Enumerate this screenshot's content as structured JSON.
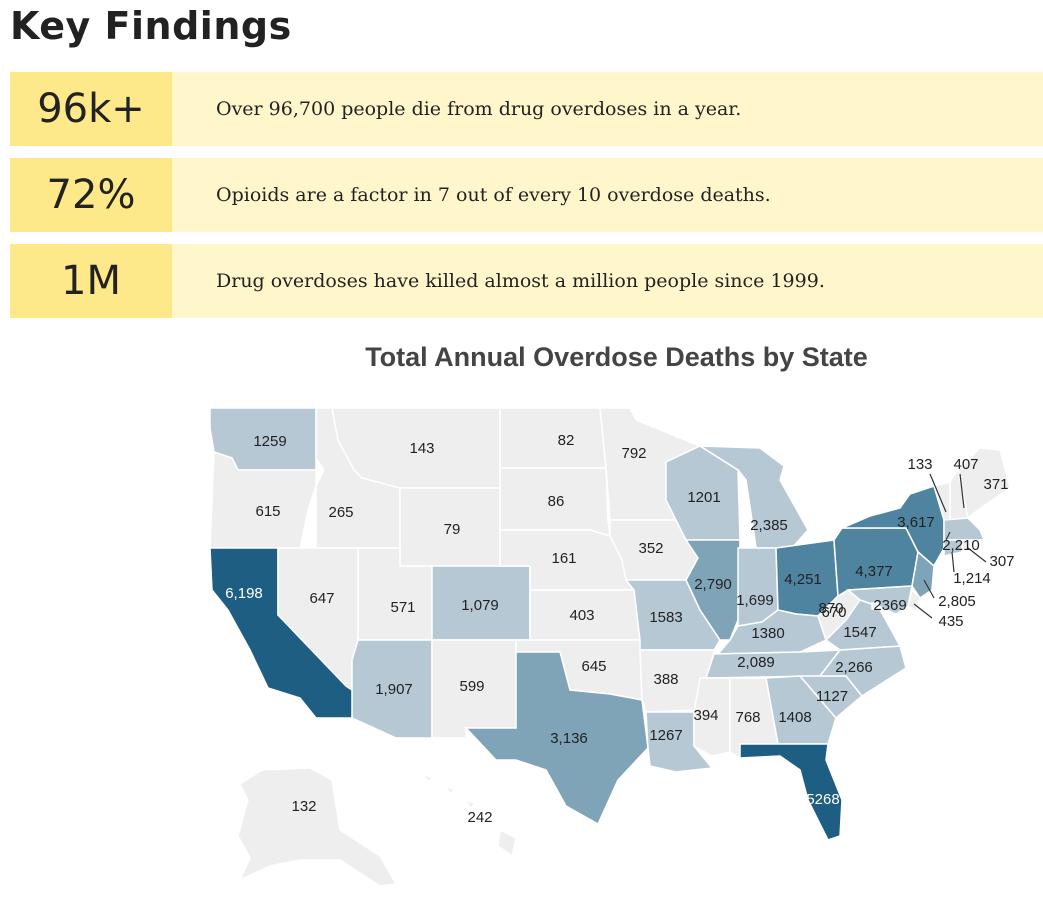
{
  "heading": "Key Findings",
  "findings": [
    {
      "stat": "96k+",
      "text": "Over 96,700 people die from drug overdoses in a year."
    },
    {
      "stat": "72%",
      "text": "Opioids are a factor in 7 out of every 10 overdose deaths."
    },
    {
      "stat": "1M",
      "text": "Drug overdoses have killed almost a million people since 1999."
    }
  ],
  "map": {
    "title": "Total Annual Overdose Deaths by State",
    "color_scale": [
      "#eeeeee",
      "#b7c8d5",
      "#7fa4b8",
      "#4f84a0",
      "#1d5e82"
    ],
    "states": {
      "WA": "1259",
      "OR": "615",
      "CA": "6,198",
      "NV": "647",
      "ID": "265",
      "MT": "143",
      "WY": "79",
      "UT": "571",
      "AZ": "1,907",
      "CO": "1,079",
      "NM": "599",
      "ND": "82",
      "SD": "86",
      "NE": "161",
      "KS": "403",
      "OK": "645",
      "TX": "3,136",
      "MN": "792",
      "IA": "352",
      "MO": "1583",
      "AR": "388",
      "LA": "1267",
      "WI": "1201",
      "IL": "2,790",
      "MI": "2,385",
      "IN": "1,699",
      "OH": "4,251",
      "KY": "1380",
      "TN": "2,089",
      "MS": "394",
      "AL": "768",
      "GA": "1408",
      "FL": "5268",
      "SC": "1127",
      "NC": "2,266",
      "VA": "1547",
      "WV": "870",
      "PA": "4,377",
      "NY": "3,617",
      "VT": "133",
      "NH": "407",
      "ME": "371",
      "MA": "2,210",
      "RI": "307",
      "CT": "1,214",
      "NJ": "2,805",
      "DE": "435",
      "MD": "2369",
      "DC": "670",
      "AK": "132",
      "HI": "242"
    }
  }
}
